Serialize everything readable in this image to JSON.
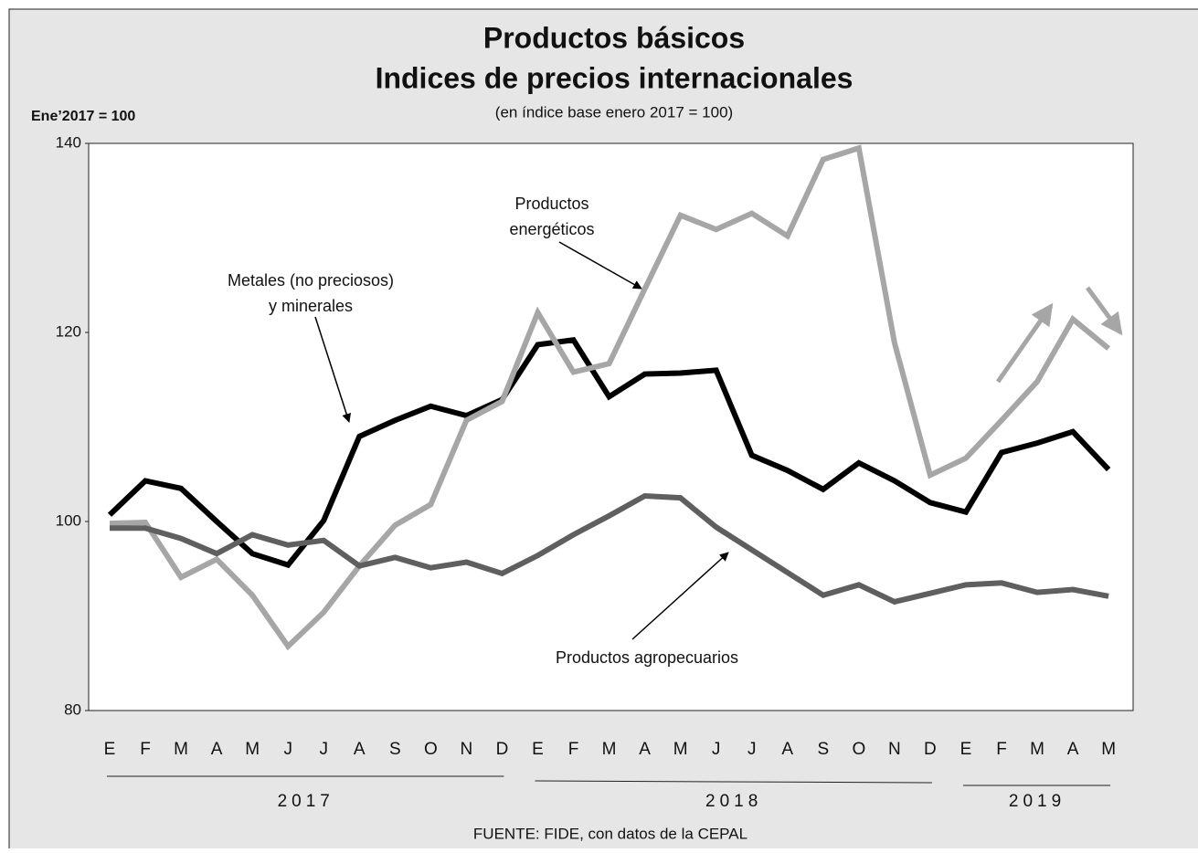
{
  "chart_data": {
    "type": "line",
    "title": [
      "Productos básicos",
      "Indices de precios internacionales"
    ],
    "subtitle": "(en índice base enero 2017 = 100)",
    "y_label": "Ene’2017 = 100",
    "source": "FUENTE: FIDE, con datos de la CEPAL",
    "categories": [
      "E",
      "F",
      "M",
      "A",
      "M",
      "J",
      "J",
      "A",
      "S",
      "O",
      "N",
      "D",
      "E",
      "F",
      "M",
      "A",
      "M",
      "J",
      "J",
      "A",
      "S",
      "O",
      "N",
      "D",
      "E",
      "F",
      "M",
      "A",
      "M"
    ],
    "years": [
      "2017",
      "2018",
      "2019"
    ],
    "ylim": [
      80,
      140
    ],
    "yticks": [
      80,
      100,
      120,
      140
    ],
    "series": [
      {
        "name": [
          "Metales (no preciosos)",
          "y minerales"
        ],
        "color": "#000000",
        "values": [
          100.7,
          104.3,
          103.5,
          100.0,
          96.6,
          95.4,
          100.1,
          109.0,
          110.7,
          112.2,
          111.2,
          112.9,
          118.7,
          119.2,
          113.2,
          115.6,
          115.7,
          116.0,
          107.0,
          105.4,
          103.4,
          106.2,
          104.3,
          102.0,
          101.0,
          107.3,
          108.3,
          109.5,
          105.5
        ]
      },
      {
        "name": [
          "Productos",
          "energéticos"
        ],
        "color": "#a6a6a6",
        "values": [
          99.8,
          99.9,
          94.1,
          96.0,
          92.2,
          86.8,
          90.4,
          95.3,
          99.6,
          101.8,
          110.7,
          112.7,
          122.1,
          115.8,
          116.7,
          124.6,
          132.4,
          130.9,
          132.6,
          130.2,
          138.3,
          139.5,
          118.9,
          104.9,
          106.7,
          110.7,
          114.8,
          121.4,
          118.3
        ]
      },
      {
        "name": [
          "Productos agropecuarios"
        ],
        "color": "#5f5f5f",
        "values": [
          99.3,
          99.3,
          98.2,
          96.6,
          98.6,
          97.5,
          98.0,
          95.3,
          96.2,
          95.1,
          95.7,
          94.5,
          96.4,
          98.6,
          100.6,
          102.7,
          102.5,
          99.4,
          97.0,
          94.6,
          92.2,
          93.3,
          91.5,
          92.4,
          93.3,
          93.5,
          92.5,
          92.8,
          92.1
        ]
      }
    ]
  }
}
